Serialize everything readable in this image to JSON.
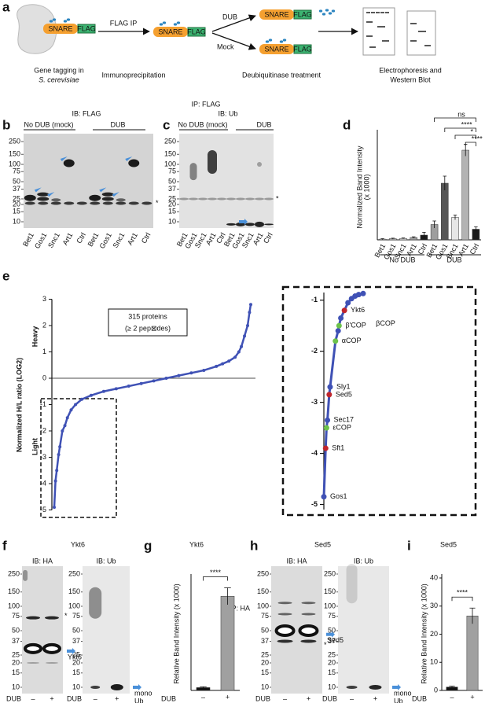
{
  "panel_labels": [
    "a",
    "b",
    "c",
    "d",
    "e",
    "f",
    "g",
    "h",
    "i"
  ],
  "a": {
    "snare": "SNARE",
    "flag": "FLAG",
    "flag_ip": "FLAG IP",
    "dub": "DUB",
    "mock": "Mock",
    "captions": [
      "Gene tagging in",
      "S. cerevisiae",
      "Immunoprecipitation",
      "Deubiquitinase treatment",
      "Electrophoresis and",
      "Western Blot"
    ]
  },
  "ip_flag": "IP: FLAG",
  "ip_ha": "IP: HA",
  "b": {
    "ib": "IB: FLAG",
    "groups": [
      "No DUB (mock)",
      "DUB"
    ],
    "ladder": [
      250,
      150,
      100,
      75,
      50,
      37,
      25,
      20,
      15,
      10
    ],
    "lanes": [
      "Bet1",
      "Gos1",
      "Snc1",
      "Art1",
      "Ctrl",
      "Bet1",
      "Gos1",
      "Snc1",
      "Art1",
      "Ctrl"
    ],
    "asterisk": "*"
  },
  "c": {
    "ib": "IB: Ub",
    "groups": [
      "No DUB (mock)",
      "DUB"
    ],
    "ladder": [
      250,
      150,
      100,
      75,
      50,
      37,
      25,
      20,
      15,
      10
    ],
    "lanes": [
      "Bet1",
      "Gos1",
      "Snc1",
      "Art1",
      "Ctrl",
      "Bet1",
      "Gos1",
      "Snc1",
      "Art1",
      "Ctrl"
    ],
    "asterisk": "*"
  },
  "d": {
    "type": "bar",
    "ylabel": [
      "Normalized Band Intensity",
      "(x 1000)"
    ],
    "categories": [
      "Bet1",
      "Gos1",
      "Snc1",
      "Art1",
      "Ctrl",
      "Bet1",
      "Gos1",
      "Snc1",
      "Art1",
      "Ctrl"
    ],
    "groups": [
      "No DUB",
      "DUB"
    ],
    "values": [
      0.3,
      0.5,
      0.6,
      1.0,
      2.0,
      6.5,
      24,
      9.5,
      38,
      4.5
    ],
    "errors": [
      0.2,
      0.2,
      0.2,
      0.3,
      1.2,
      1.5,
      3,
      1,
      2.5,
      1
    ],
    "colors": [
      "#e6e6e6",
      "#bdbdbd",
      "#d9d9d9",
      "#9e9e9e",
      "#1a1a1a",
      "#9e9e9e",
      "#555555",
      "#e6e6e6",
      "#b3b3b3",
      "#1a1a1a"
    ],
    "ylim": [
      0,
      45
    ],
    "significance": [
      "ns",
      "****",
      "*",
      "****"
    ]
  },
  "e": {
    "type": "scatter",
    "ylabel": "Normalized H/L ratio (LOG2)",
    "heavy": "Heavy",
    "light": "Light",
    "box": [
      "315 proteins",
      "(≥ 2 pep⊠des)"
    ],
    "x": [
      1,
      3,
      5,
      8,
      10,
      14,
      18,
      22,
      28,
      35,
      45,
      60,
      80,
      100,
      120,
      140,
      160,
      180,
      200,
      220,
      240,
      260,
      270,
      280,
      290,
      296,
      300,
      305,
      310,
      313,
      315
    ],
    "values": [
      -4.9,
      -3.9,
      -3.5,
      -2.9,
      -2.6,
      -2.0,
      -1.8,
      -1.5,
      -1.2,
      -1.0,
      -0.8,
      -0.65,
      -0.5,
      -0.4,
      -0.3,
      -0.2,
      -0.1,
      0.0,
      0.1,
      0.2,
      0.3,
      0.45,
      0.55,
      0.65,
      0.8,
      1.0,
      1.2,
      1.6,
      2.0,
      2.5,
      2.8
    ],
    "color": "#3f51b5",
    "xlim": [
      1,
      315
    ],
    "ylim": [
      -5,
      3
    ],
    "yticks": [
      3,
      2,
      1,
      0,
      -1,
      -2,
      -3,
      -4,
      -5
    ],
    "inset": {
      "type": "scatter",
      "x": [
        1,
        3,
        4,
        5,
        7,
        8,
        14,
        17,
        18,
        20,
        24,
        28,
        32,
        36,
        40,
        45
      ],
      "values": [
        -4.85,
        -3.9,
        -3.5,
        -3.35,
        -2.85,
        -2.7,
        -1.8,
        -1.6,
        -1.5,
        -1.35,
        -1.2,
        -1.05,
        -0.97,
        -0.92,
        -0.89,
        -0.87
      ],
      "labels": [
        "Gos1",
        "Sft1",
        "εCOP",
        "Sec17",
        "Sed5",
        "Sly1",
        "αCOP",
        "βCOP",
        "β'COP",
        null,
        "Ykt6",
        null,
        null,
        null,
        null,
        null
      ],
      "colors": [
        "#3f51b5",
        "#c0262d",
        "#6cc24a",
        "#3f51b5",
        "#c0262d",
        "#3f51b5",
        "#6cc24a",
        "#3f51b5",
        "#6cc24a",
        "#3f51b5",
        "#c0262d",
        "#3f51b5",
        "#3f51b5",
        "#3f51b5",
        "#3f51b5",
        "#3f51b5"
      ],
      "xlim": [
        1,
        45
      ],
      "ylim": [
        -0.85,
        -5.1
      ],
      "yticks": [
        -1,
        -2,
        -3,
        -4,
        -5
      ]
    }
  },
  "f": {
    "title": "Ykt6",
    "blots": [
      {
        "ib": "IB: HA",
        "ladder": [
          250,
          150,
          100,
          75,
          50,
          37,
          25,
          20,
          15,
          10
        ]
      },
      {
        "ib": "IB: Ub",
        "ladder": [
          250,
          150,
          100,
          75,
          50,
          37,
          25,
          20,
          15,
          10
        ]
      }
    ],
    "asterisk": "*",
    "band": "Ykt6",
    "mono": [
      "mono",
      "Ub"
    ],
    "dub": "DUB",
    "conditions": [
      "–",
      "+"
    ]
  },
  "g": {
    "type": "bar",
    "title": "Ykt6",
    "ylabel": "Relative Band Intensity (x 1000)",
    "xlabel": "DUB",
    "categories": [
      "–",
      "+"
    ],
    "values": [
      1,
      33.5
    ],
    "errors": [
      0.3,
      3
    ],
    "colors": [
      "#111111",
      "#a0a0a0"
    ],
    "ylim": [
      0,
      40
    ],
    "significance": "****"
  },
  "h": {
    "title": "Sed5",
    "blots": [
      {
        "ib": "IB: HA",
        "ladder": [
          250,
          150,
          100,
          75,
          50,
          37,
          25,
          20,
          15,
          10
        ]
      },
      {
        "ib": "IB: Ub",
        "ladder": [
          250,
          150,
          100,
          75,
          50,
          37,
          25,
          20,
          15,
          10
        ]
      }
    ],
    "asterisk": "*",
    "band": "Sed5",
    "mono": [
      "mono",
      "Ub"
    ],
    "dub": "DUB",
    "conditions": [
      "–",
      "+"
    ]
  },
  "i": {
    "type": "bar",
    "title": "Sed5",
    "ylabel": "Relative Band Intensity (x 1000)",
    "xlabel": "DUB",
    "categories": [
      "–",
      "+"
    ],
    "values": [
      1.2,
      26.5
    ],
    "errors": [
      0.3,
      2.8
    ],
    "colors": [
      "#111111",
      "#a0a0a0"
    ],
    "ylim": [
      0,
      40
    ],
    "yticks": [
      0,
      10,
      20,
      30,
      40
    ],
    "significance": "****"
  }
}
